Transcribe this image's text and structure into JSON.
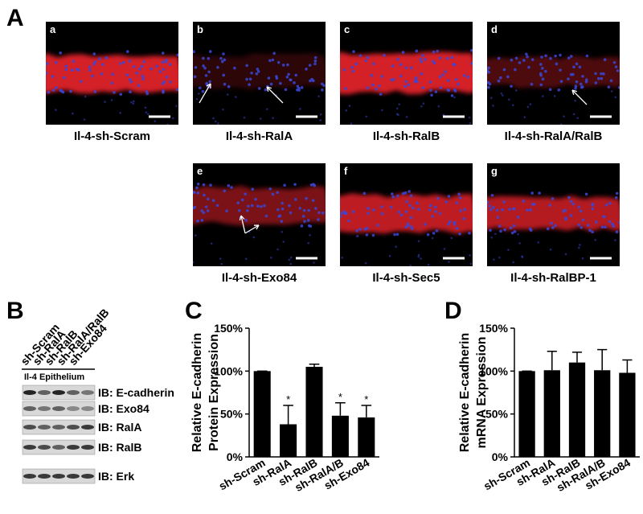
{
  "panel_labels": [
    "A",
    "B",
    "C",
    "D"
  ],
  "images": [
    {
      "letter": "a",
      "caption": "Il-4-sh-Scram"
    },
    {
      "letter": "b",
      "caption": "Il-4-sh-RalA"
    },
    {
      "letter": "c",
      "caption": "Il-4-sh-RalB"
    },
    {
      "letter": "d",
      "caption": "Il-4-sh-RalA/RalB"
    },
    {
      "letter": "e",
      "caption": "Il-4-sh-Exo84"
    },
    {
      "letter": "f",
      "caption": "Il-4-sh-Sec5"
    },
    {
      "letter": "g",
      "caption": "Il-4-sh-RalBP-1"
    }
  ],
  "blot": {
    "columns": [
      "sh-Scram",
      "sh-RalA",
      "sh-RalB",
      "sh-RalA/RalB",
      "sh-Exo84"
    ],
    "header": "Il-4 Epithelium",
    "rows": [
      "IB: E-cadherin",
      "IB: Exo84",
      "IB: RalA",
      "IB: RalB",
      "IB: Erk"
    ]
  },
  "chart_data": [
    {
      "type": "bar",
      "y_label": [
        "Relative E-cadherin",
        "Protein Expression"
      ],
      "categories": [
        "sh-Scram",
        "sh-RalA",
        "sh-RalB",
        "sh-RalA/B",
        "sh-Exo84"
      ],
      "values": [
        100,
        38,
        105,
        48,
        46
      ],
      "errors": [
        0,
        22,
        3,
        15,
        14
      ],
      "significance": [
        null,
        "*",
        null,
        "*",
        "*"
      ],
      "color": "#000000",
      "ylim": [
        0,
        150
      ],
      "yticks": [
        {
          "value": 0,
          "label": "0%"
        },
        {
          "value": 50,
          "label": "50%"
        },
        {
          "value": 100,
          "label": "100%"
        },
        {
          "value": 150,
          "label": "150%"
        }
      ]
    },
    {
      "type": "bar",
      "y_label": [
        "Relative E-cadherin",
        "mRNA Expression"
      ],
      "categories": [
        "sh-Scram",
        "sh-RalA",
        "sh-RalB",
        "sh-RalA/B",
        "sh-Exo84"
      ],
      "values": [
        100,
        101,
        110,
        101,
        98
      ],
      "errors": [
        0,
        22,
        12,
        24,
        15
      ],
      "color": "#000000",
      "ylim": [
        0,
        150
      ],
      "yticks": [
        {
          "value": 0,
          "label": "0%"
        },
        {
          "value": 50,
          "label": "50%"
        },
        {
          "value": 100,
          "label": "100%"
        },
        {
          "value": 150,
          "label": "150%"
        }
      ]
    }
  ]
}
